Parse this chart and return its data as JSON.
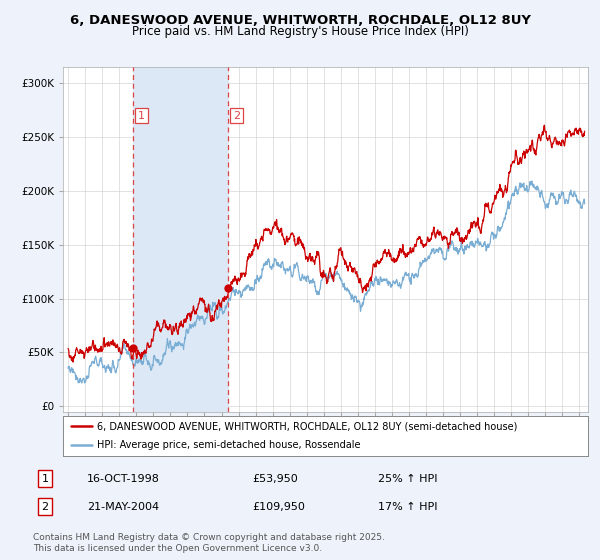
{
  "title_line1": "6, DANESWOOD AVENUE, WHITWORTH, ROCHDALE, OL12 8UY",
  "title_line2": "Price paid vs. HM Land Registry's House Price Index (HPI)",
  "ylabel_ticks": [
    "£0",
    "£50K",
    "£100K",
    "£150K",
    "£200K",
    "£250K",
    "£300K"
  ],
  "ytick_vals": [
    0,
    50000,
    100000,
    150000,
    200000,
    250000,
    300000
  ],
  "ylim": [
    -5000,
    315000
  ],
  "xlim_start": 1994.7,
  "xlim_end": 2025.5,
  "purchase1_date": 1998.79,
  "purchase1_price": 53950,
  "purchase2_date": 2004.38,
  "purchase2_price": 109950,
  "legend_red": "6, DANESWOOD AVENUE, WHITWORTH, ROCHDALE, OL12 8UY (semi-detached house)",
  "legend_blue": "HPI: Average price, semi-detached house, Rossendale",
  "table_row1": [
    "1",
    "16-OCT-1998",
    "£53,950",
    "25% ↑ HPI"
  ],
  "table_row2": [
    "2",
    "21-MAY-2004",
    "£109,950",
    "17% ↑ HPI"
  ],
  "footnote": "Contains HM Land Registry data © Crown copyright and database right 2025.\nThis data is licensed under the Open Government Licence v3.0.",
  "color_red": "#cc0000",
  "color_blue": "#7aadd4",
  "color_vline": "#dd4444",
  "bg_color": "#eef2fa",
  "plot_bg": "#ffffff",
  "span_color": "#dce8f5"
}
